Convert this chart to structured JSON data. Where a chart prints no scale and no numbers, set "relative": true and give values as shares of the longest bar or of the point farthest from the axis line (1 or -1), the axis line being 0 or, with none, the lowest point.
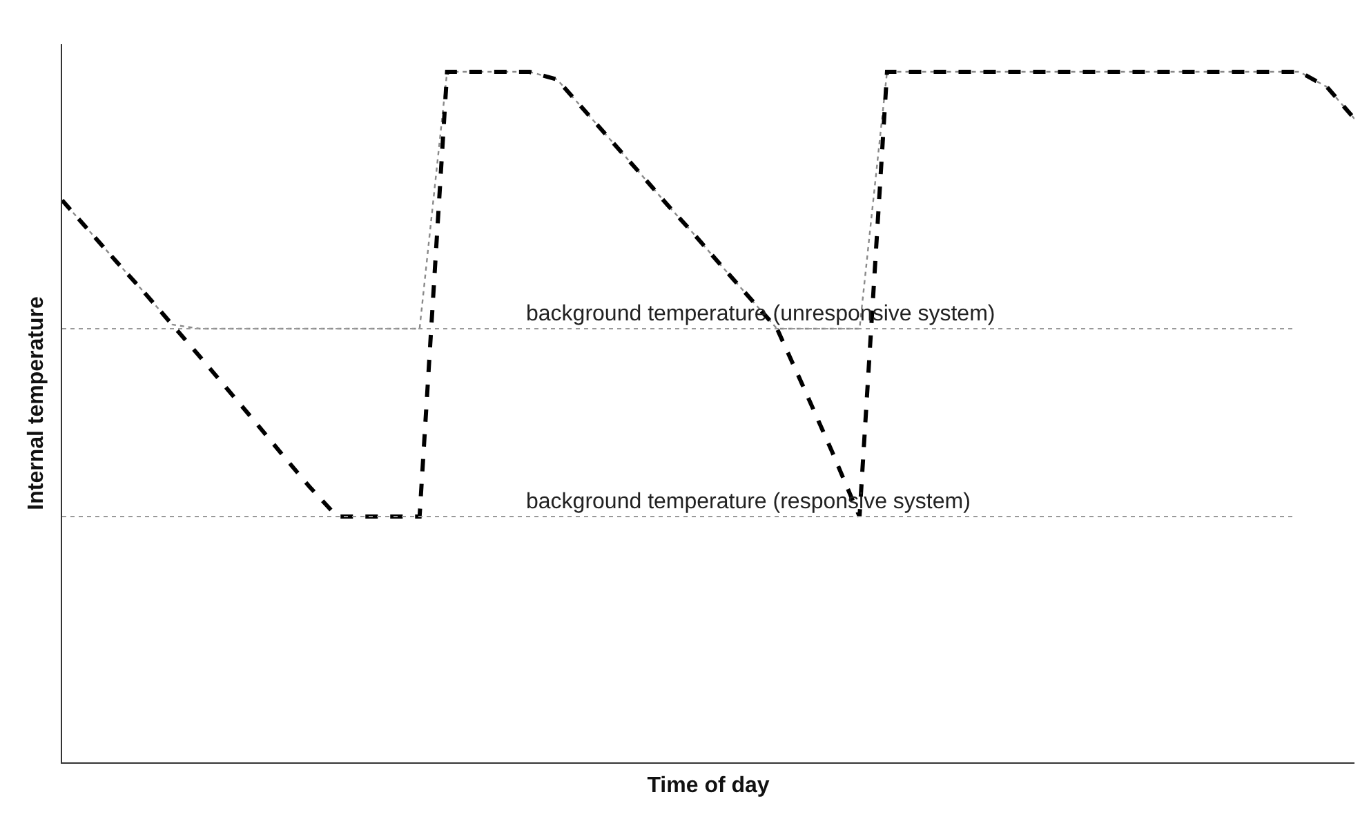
{
  "chart_data": {
    "type": "line",
    "relative": true,
    "xlabel": "Time of day",
    "ylabel": "Internal temperature",
    "categories": [
      null,
      null,
      null,
      null,
      null,
      null,
      null,
      null,
      null,
      null,
      null,
      null,
      null,
      null,
      null,
      null,
      null,
      null,
      null,
      null,
      null,
      null,
      null,
      null,
      null,
      null,
      null,
      null,
      null,
      null,
      null,
      null,
      null,
      null,
      null,
      null,
      null,
      null,
      null,
      null,
      null,
      null,
      null,
      null,
      null,
      null,
      null,
      null
    ],
    "series": [
      {
        "color": "#8a8a8a",
        "line_style": "dotted",
        "values": [
          0.814,
          0.769,
          0.724,
          0.68,
          0.634,
          0.628,
          0.628,
          0.628,
          0.628,
          0.628,
          0.628,
          0.628,
          0.628,
          0.628,
          1,
          1,
          1,
          1,
          0.989,
          0.944,
          0.899,
          0.854,
          0.808,
          0.764,
          0.718,
          0.673,
          0.628,
          0.628,
          0.628,
          0.628,
          1,
          1,
          1,
          1,
          1,
          1,
          1,
          1,
          1,
          1,
          1,
          1,
          1,
          1,
          1,
          1,
          0.978,
          0.932
        ]
      },
      {
        "color": "#000000",
        "line_style": "dashed",
        "values": [
          0.814,
          0.769,
          0.724,
          0.68,
          0.634,
          0.588,
          0.541,
          0.494,
          0.446,
          0.399,
          0.356,
          0.356,
          0.356,
          0.356,
          1,
          1,
          1,
          1,
          0.989,
          0.944,
          0.899,
          0.854,
          0.808,
          0.764,
          0.718,
          0.673,
          0.628,
          0.54,
          0.45,
          0.356,
          1,
          1,
          1,
          1,
          1,
          1,
          1,
          1,
          1,
          1,
          1,
          1,
          1,
          1,
          1,
          1,
          0.978,
          0.932
        ]
      }
    ],
    "ref_lines": [
      {
        "axis": "y",
        "value": 0.628,
        "label": "background temperature (unresponsive system)",
        "color": "#999999",
        "line_style": "dotted"
      },
      {
        "axis": "y",
        "value": 0.356,
        "label": "background temperature (responsive system)",
        "color": "#999999",
        "line_style": "dotted"
      }
    ]
  }
}
